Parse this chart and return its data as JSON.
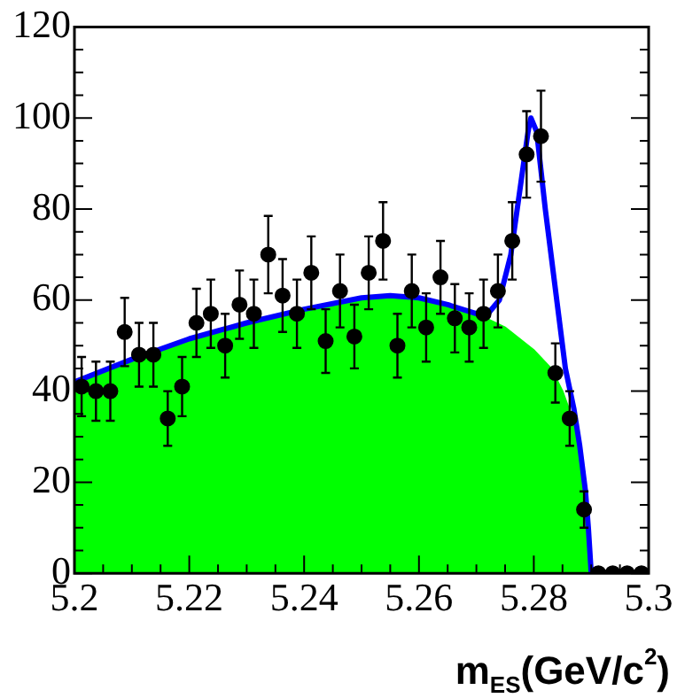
{
  "chart_data": {
    "type": "scatter",
    "xlabel": "m$_{ES}$(GeV/c$^{2}$)",
    "xlim": [
      5.2,
      5.3
    ],
    "ylim": [
      0,
      120
    ],
    "xticks": [
      5.2,
      {
        "value": 5.205,
        "label": null
      },
      {
        "value": 5.21,
        "label": null
      },
      {
        "value": 5.215,
        "label": null
      },
      5.22,
      {
        "value": 5.225,
        "label": null
      },
      {
        "value": 5.23,
        "label": null
      },
      {
        "value": 5.235,
        "label": null
      },
      5.24,
      {
        "value": 5.245,
        "label": null
      },
      {
        "value": 5.25,
        "label": null
      },
      {
        "value": 5.255,
        "label": null
      },
      5.26,
      {
        "value": 5.265,
        "label": null
      },
      {
        "value": 5.27,
        "label": null
      },
      {
        "value": 5.275,
        "label": null
      },
      5.28,
      {
        "value": 5.285,
        "label": null
      },
      {
        "value": 5.29,
        "label": null
      },
      {
        "value": 5.295,
        "label": null
      },
      5.3
    ],
    "yticks": [
      0,
      {
        "value": 5,
        "label": null
      },
      {
        "value": 10,
        "label": null
      },
      {
        "value": 15,
        "label": null
      },
      20,
      {
        "value": 25,
        "label": null
      },
      {
        "value": 30,
        "label": null
      },
      {
        "value": 35,
        "label": null
      },
      40,
      {
        "value": 45,
        "label": null
      },
      {
        "value": 50,
        "label": null
      },
      {
        "value": 55,
        "label": null
      },
      60,
      {
        "value": 65,
        "label": null
      },
      {
        "value": 70,
        "label": null
      },
      {
        "value": 75,
        "label": null
      },
      80,
      {
        "value": 85,
        "label": null
      },
      {
        "value": 90,
        "label": null
      },
      {
        "value": 95,
        "label": null
      },
      100,
      {
        "value": 105,
        "label": null
      },
      {
        "value": 110,
        "label": null
      },
      {
        "value": 115,
        "label": null
      },
      120
    ],
    "grid": false,
    "legend": false,
    "series": [
      {
        "type": "area",
        "color": "#00ff00",
        "x": [
          5.2,
          5.21,
          5.22,
          5.23,
          5.24,
          5.25,
          5.255,
          5.26,
          5.265,
          5.27,
          5.275,
          5.28,
          5.283,
          5.285,
          5.287,
          5.288,
          5.289,
          5.2895,
          5.29
        ],
        "values": [
          42,
          47,
          51.5,
          55,
          58,
          60.5,
          61,
          60.5,
          59,
          57,
          54,
          49,
          45,
          40,
          33,
          27,
          18,
          10,
          0
        ]
      },
      {
        "type": "line",
        "color": "#0000ff",
        "x": [
          5.2,
          5.21,
          5.22,
          5.23,
          5.24,
          5.25,
          5.255,
          5.26,
          5.265,
          5.27,
          5.272,
          5.274,
          5.276,
          5.278,
          5.279,
          5.2795,
          5.2805,
          5.282,
          5.284,
          5.2855,
          5.287,
          5.288,
          5.289,
          5.2895,
          5.29,
          5.3
        ],
        "values": [
          42,
          47,
          51.5,
          55,
          58,
          60.5,
          61,
          60.5,
          59,
          57,
          57,
          60,
          70,
          88,
          97,
          100,
          97,
          80,
          60,
          45,
          36,
          28,
          18,
          10,
          0,
          0
        ]
      },
      {
        "marker": "circle",
        "color": "#000000",
        "x": [
          5.20125,
          5.20375,
          5.20625,
          5.20875,
          5.21125,
          5.21375,
          5.21625,
          5.21875,
          5.22125,
          5.22375,
          5.22625,
          5.22875,
          5.23125,
          5.23375,
          5.23625,
          5.23875,
          5.24125,
          5.24375,
          5.24625,
          5.24875,
          5.25125,
          5.25375,
          5.25625,
          5.25875,
          5.26125,
          5.26375,
          5.26625,
          5.26875,
          5.27125,
          5.27375,
          5.27625,
          5.27875,
          5.28125,
          5.28375,
          5.28625,
          5.28875,
          5.29125,
          5.29375,
          5.29625,
          5.29875
        ],
        "values": [
          41,
          40,
          40,
          53,
          48,
          48,
          34,
          41,
          55,
          57,
          50,
          59,
          57,
          70,
          61,
          57,
          66,
          51,
          62,
          52,
          66,
          73,
          50,
          62,
          54,
          65,
          56,
          54,
          57,
          62,
          73,
          92,
          96,
          44,
          34,
          14,
          0,
          0,
          0,
          0
        ],
        "errors": [
          6.5,
          6.5,
          6.5,
          7.5,
          7,
          7,
          6,
          6.5,
          7.5,
          7.5,
          7,
          7.5,
          7.5,
          8.5,
          8,
          7.5,
          8,
          7,
          8,
          7,
          8,
          8.5,
          7,
          8,
          7.5,
          8,
          7.5,
          7.5,
          7.5,
          8,
          8.5,
          9.5,
          10,
          6.5,
          6,
          4,
          null,
          null,
          null,
          null
        ]
      }
    ]
  }
}
